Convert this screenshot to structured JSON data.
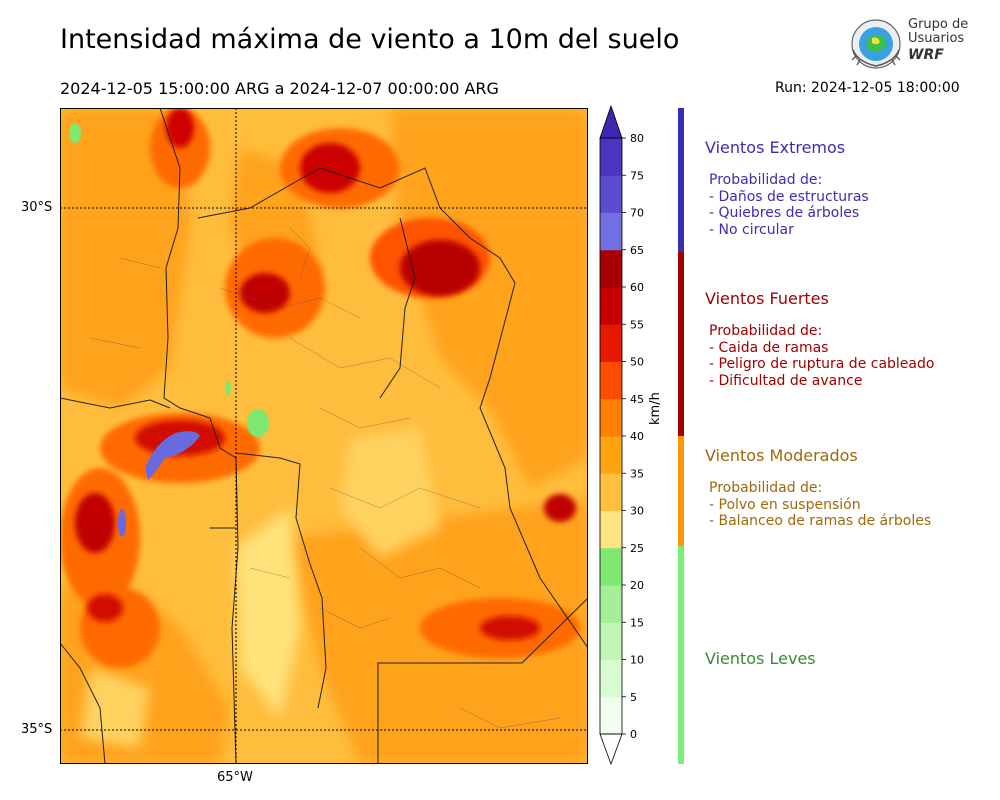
{
  "header": {
    "title": "Intensidad máxima de viento a 10m del suelo",
    "period": "2024-12-05 15:00:00 ARG  a  2024-12-07 00:00:00 ARG",
    "run": "Run: 2024-12-05 18:00:00"
  },
  "logo": {
    "line1": "Grupo de",
    "line2": "Usuarios",
    "line3": "WRF"
  },
  "map": {
    "lat_labels": [
      "30°S",
      "35°S"
    ],
    "lon_labels": [
      "65°W"
    ]
  },
  "colorbar": {
    "unit": "km/h",
    "ticks": [
      "0",
      "5",
      "10",
      "15",
      "20",
      "25",
      "30",
      "35",
      "40",
      "45",
      "50",
      "55",
      "60",
      "65",
      "70",
      "75",
      "80"
    ],
    "colors": [
      "#f2fff0",
      "#d9fbd2",
      "#bff5b5",
      "#a4ef98",
      "#7fe871",
      "#fde47e",
      "#ffbf3f",
      "#ffa30f",
      "#ff7f00",
      "#ff4d00",
      "#e61a00",
      "#c90000",
      "#a80000",
      "#7070e0",
      "#5a4bd0",
      "#4a34c0"
    ]
  },
  "categories": [
    {
      "title": "Vientos Extremos",
      "color": "#3a2eb0",
      "bar_color": "#3a2eb0",
      "lines": [
        "Probabilidad de:",
        "- Daños de estructuras",
        "- Quiebres de árboles",
        "- No circular"
      ]
    },
    {
      "title": "Vientos Fuertes",
      "color": "#a00000",
      "bar_color": "#a00000",
      "lines": [
        "Probabilidad de:",
        "- Caida de ramas",
        "- Peligro de ruptura de cableado",
        "- Dificultad de avance"
      ]
    },
    {
      "title": "Vientos Moderados",
      "color": "#a0680a",
      "bar_color": "#ff9900",
      "lines": [
        "Probabilidad de:",
        "- Polvo en suspensión",
        "- Balanceo de ramas de árboles"
      ]
    },
    {
      "title": "Vientos Leves",
      "color": "#3a8a35",
      "bar_color": "#77ee77",
      "lines": []
    }
  ]
}
